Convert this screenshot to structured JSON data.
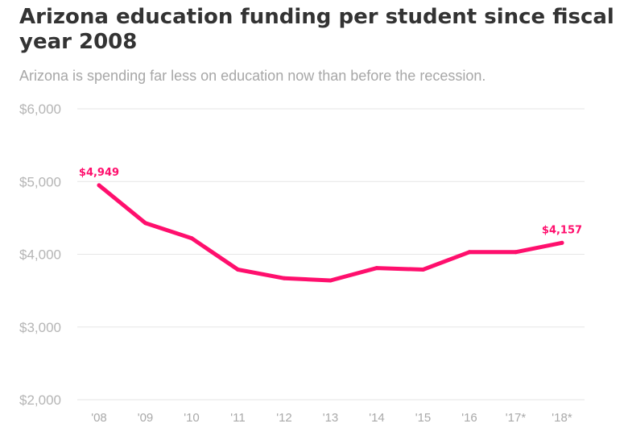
{
  "header": {
    "title": "Arizona education funding per student since fiscal year 2008",
    "subtitle": "Arizona is spending far less on education now than before the recession."
  },
  "colors": {
    "line": "#ff0f6d",
    "title": "#333333",
    "subtitle": "#a7a7a7"
  },
  "chart_data": {
    "type": "line",
    "title": "Arizona education funding per student since fiscal year 2008",
    "subtitle": "Arizona is spending far less on education now than before the recession.",
    "xlabel": "",
    "ylabel": "",
    "categories": [
      "'08",
      "'09",
      "'10",
      "'11",
      "'12",
      "'13",
      "'14",
      "'15",
      "'16",
      "'17*",
      "'18*"
    ],
    "values": [
      4949,
      4430,
      4220,
      3790,
      3670,
      3640,
      3810,
      3790,
      4030,
      4030,
      4157
    ],
    "ylim": [
      2000,
      6000
    ],
    "yticks": [
      2000,
      3000,
      4000,
      5000,
      6000
    ],
    "ytick_labels": [
      "$2,000",
      "$3,000",
      "$4,000",
      "$5,000",
      "$6,000"
    ],
    "grid": true,
    "legend": "none",
    "data_labels": [
      {
        "index": 0,
        "text": "$4,949"
      },
      {
        "index": 10,
        "text": "$4,157"
      }
    ]
  }
}
